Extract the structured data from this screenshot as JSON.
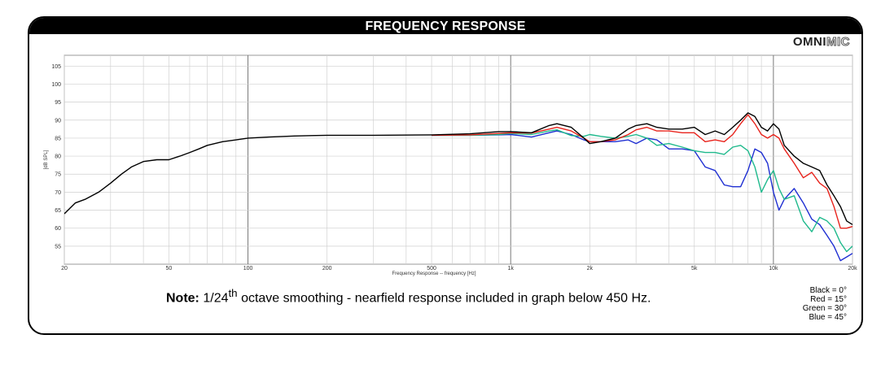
{
  "header": {
    "title": "FREQUENCY RESPONSE",
    "logo_a": "OMNI",
    "logo_b": "MIC"
  },
  "note": {
    "label": "Note:",
    "text_a": "1/24",
    "superscript": "th",
    "text_b": "octave smoothing - nearfield response included in graph below 450 Hz."
  },
  "legend": [
    {
      "text": "Black = 0°",
      "color": "#000000"
    },
    {
      "text": "Red = 15°",
      "color": "#e8231c"
    },
    {
      "text": "Green = 30°",
      "color": "#1fb98c"
    },
    {
      "text": "Blue = 45°",
      "color": "#1f2fd2"
    }
  ],
  "chart_data": {
    "type": "line",
    "title": "FREQUENCY RESPONSE",
    "xlabel": "Frequency Response -- frequency [Hz]",
    "ylabel": "[dB SPL]",
    "xscale": "log",
    "xlim": [
      20,
      20000
    ],
    "ylim": [
      50,
      108
    ],
    "x_ticks": [
      20,
      50,
      100,
      200,
      500,
      1000,
      2000,
      5000,
      10000,
      20000
    ],
    "x_tick_labels": [
      "20",
      "50",
      "100",
      "200",
      "500",
      "1k",
      "2k",
      "5k",
      "10k",
      "20k"
    ],
    "y_ticks": [
      55,
      60,
      65,
      70,
      75,
      80,
      85,
      90,
      95,
      100,
      105
    ],
    "grid": true,
    "series": [
      {
        "name": "Black = 0°",
        "color": "#000000",
        "x": [
          20,
          22,
          24,
          27,
          30,
          33,
          36,
          40,
          45,
          50,
          55,
          60,
          65,
          70,
          80,
          90,
          100,
          120,
          150,
          200,
          300,
          500,
          700,
          900,
          1000,
          1200,
          1400,
          1500,
          1700,
          1900,
          2000,
          2200,
          2500,
          2800,
          3000,
          3300,
          3600,
          4000,
          4500,
          5000,
          5500,
          6000,
          6500,
          7000,
          7500,
          8000,
          8500,
          9000,
          9500,
          10000,
          10500,
          11000,
          12000,
          13000,
          14000,
          15000,
          16000,
          17000,
          18000,
          19000,
          20000
        ],
        "y": [
          64,
          67,
          68,
          70,
          72.5,
          75,
          77,
          78.5,
          79,
          79,
          80,
          81,
          82,
          83,
          84,
          84.5,
          85,
          85.3,
          85.6,
          85.8,
          85.8,
          85.9,
          86.2,
          86.8,
          86.8,
          86.5,
          88.5,
          89,
          88,
          85,
          83.5,
          84,
          85,
          87.5,
          88.5,
          89,
          88,
          87.5,
          87.5,
          88,
          86,
          87,
          86,
          88,
          90,
          92,
          91,
          88,
          87,
          89,
          87.5,
          83,
          80,
          78,
          77,
          76,
          72,
          69,
          66,
          62,
          61
        ]
      },
      {
        "name": "Red = 15°",
        "color": "#e8231c",
        "x": [
          500,
          700,
          900,
          1000,
          1200,
          1400,
          1500,
          1700,
          1900,
          2000,
          2200,
          2500,
          2800,
          3000,
          3300,
          3600,
          4000,
          4500,
          5000,
          5500,
          6000,
          6500,
          7000,
          7500,
          8000,
          8500,
          9000,
          9500,
          10000,
          10500,
          11000,
          12000,
          13000,
          14000,
          15000,
          16000,
          17000,
          18000,
          19000,
          20000
        ],
        "y": [
          85.8,
          85.9,
          86.3,
          86.5,
          86.4,
          87.5,
          88,
          87,
          85,
          84,
          84,
          84.5,
          86,
          87.3,
          88,
          87,
          87,
          86.5,
          86.5,
          84,
          84.5,
          84,
          86,
          89,
          91.5,
          89,
          86,
          85,
          86,
          85,
          82,
          78,
          74,
          75.5,
          72.5,
          71,
          66,
          60,
          60,
          60.5
        ]
      },
      {
        "name": "Green = 30°",
        "color": "#1fb98c",
        "x": [
          500,
          700,
          900,
          1000,
          1200,
          1400,
          1500,
          1700,
          1900,
          2000,
          2200,
          2500,
          2800,
          3000,
          3300,
          3600,
          4000,
          4500,
          5000,
          5500,
          6000,
          6500,
          7000,
          7500,
          8000,
          8500,
          9000,
          9500,
          10000,
          10500,
          11000,
          12000,
          13000,
          14000,
          15000,
          16000,
          17000,
          18000,
          19000,
          20000
        ],
        "y": [
          85.8,
          85.8,
          86,
          86.3,
          86,
          87,
          87.3,
          85.7,
          85.5,
          86,
          85.5,
          85,
          85.5,
          86,
          85,
          83,
          83.5,
          82.5,
          81.5,
          81,
          81,
          80.5,
          82.5,
          83,
          81.5,
          77,
          70,
          73.5,
          76,
          71,
          68,
          69,
          62,
          59,
          63,
          62,
          60,
          56,
          53.5,
          55
        ]
      },
      {
        "name": "Blue = 45°",
        "color": "#1f2fd2",
        "x": [
          500,
          700,
          900,
          1000,
          1200,
          1400,
          1500,
          1700,
          1900,
          2000,
          2200,
          2500,
          2800,
          3000,
          3300,
          3600,
          4000,
          4500,
          5000,
          5500,
          6000,
          6500,
          7000,
          7500,
          8000,
          8500,
          9000,
          9500,
          10000,
          10500,
          11000,
          12000,
          13000,
          14000,
          15000,
          16000,
          17000,
          18000,
          19000,
          20000
        ],
        "y": [
          85.8,
          85.8,
          85.9,
          86,
          85.3,
          86.5,
          87,
          86,
          84.5,
          84,
          84,
          84,
          84.5,
          83.5,
          85,
          84.5,
          82,
          82,
          81.5,
          77,
          76,
          72,
          71.5,
          71.5,
          76,
          82,
          81,
          78,
          70,
          65,
          68,
          71,
          67,
          62.5,
          61,
          58,
          55,
          51,
          52,
          53
        ]
      }
    ]
  }
}
